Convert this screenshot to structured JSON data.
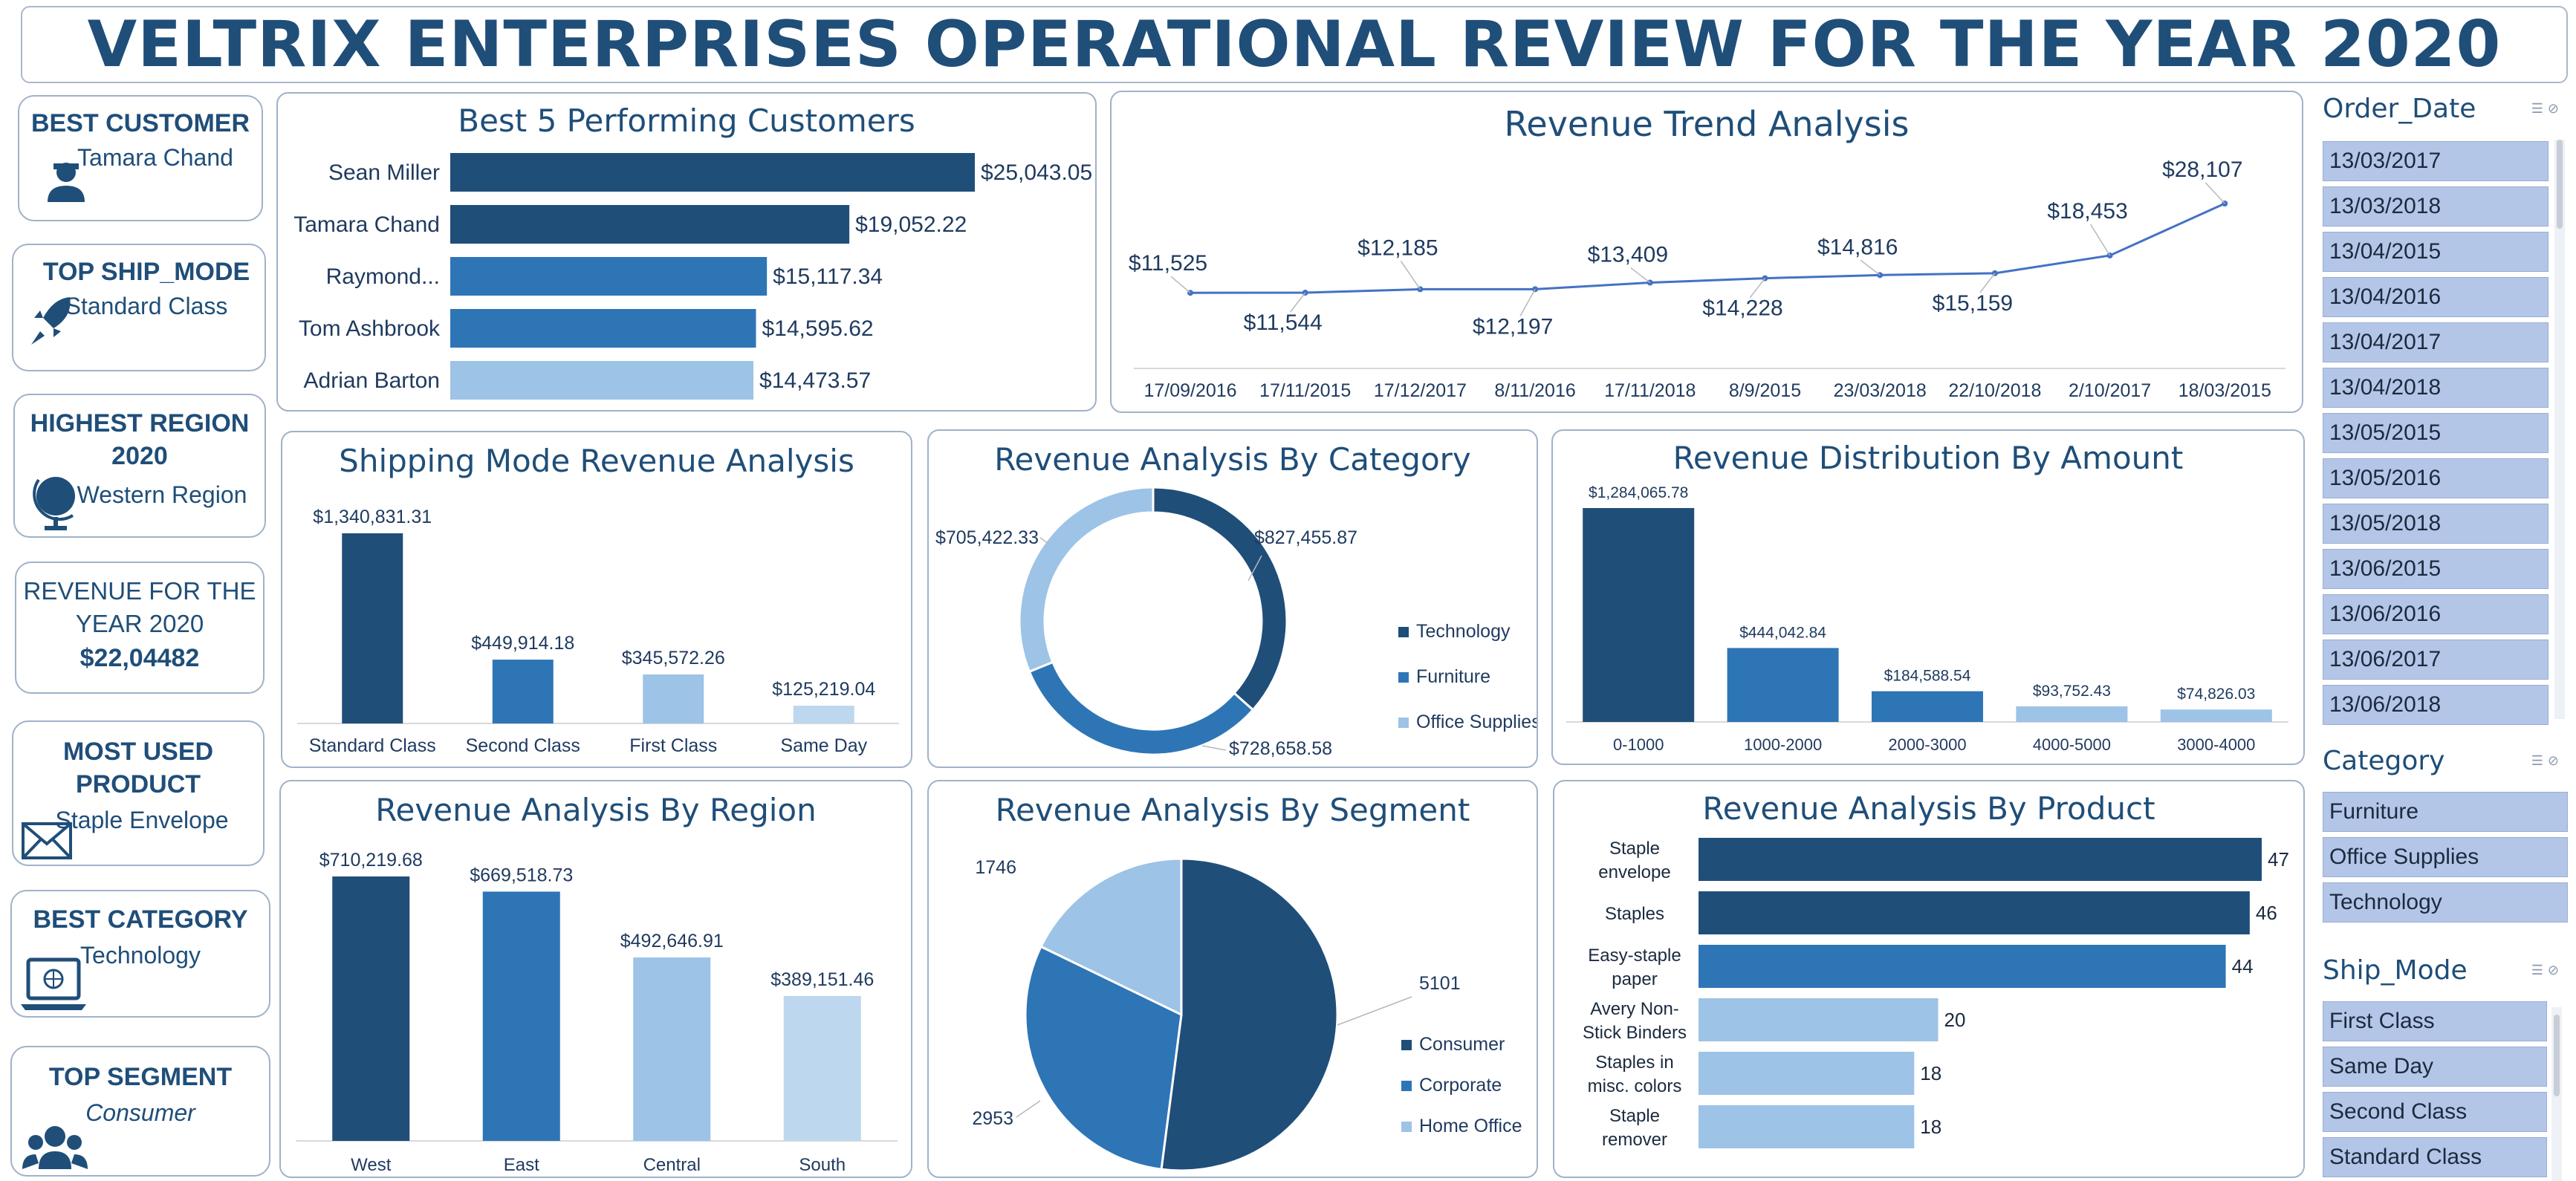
{
  "title": "VELTRIX ENTERPRISES OPERATIONAL REVIEW FOR THE YEAR 2020",
  "kpis": {
    "best_customer": {
      "label": "BEST CUSTOMER",
      "value": "Tamara Chand"
    },
    "top_ship_mode": {
      "label": "TOP SHIP_MODE",
      "value": "Standard Class"
    },
    "highest_region": {
      "label_1": "HIGHEST REGION",
      "label_2": "2020",
      "value": "Western Region"
    },
    "revenue": {
      "label_1": "REVENUE FOR THE",
      "label_2": "YEAR 2020",
      "value": "$22,04482"
    },
    "most_used_product": {
      "label_1": "MOST USED",
      "label_2": "PRODUCT",
      "value": "Staple Envelope"
    },
    "best_category": {
      "label": "BEST CATEGORY",
      "value": "Technology"
    },
    "top_segment": {
      "label": "TOP SEGMENT",
      "value": "Consumer"
    }
  },
  "colors": {
    "dark": "#1f4e79",
    "mid": "#2e75b6",
    "light": "#9dc3e6",
    "lighter": "#bdd7ee",
    "slicer": "#b4c6e7"
  },
  "slicers": {
    "order_date": {
      "title": "Order_Date",
      "items": [
        "13/03/2017",
        "13/03/2018",
        "13/04/2015",
        "13/04/2016",
        "13/04/2017",
        "13/04/2018",
        "13/05/2015",
        "13/05/2016",
        "13/05/2018",
        "13/06/2015",
        "13/06/2016",
        "13/06/2017",
        "13/06/2018"
      ]
    },
    "category": {
      "title": "Category",
      "items": [
        "Furniture",
        "Office Supplies",
        "Technology"
      ]
    },
    "ship_mode": {
      "title": "Ship_Mode",
      "items": [
        "First Class",
        "Same Day",
        "Second Class",
        "Standard Class"
      ]
    }
  },
  "chart_data": [
    {
      "id": "customers",
      "type": "bar",
      "orientation": "horizontal",
      "title": "Best 5 Performing Customers",
      "categories": [
        "Sean Miller",
        "Tamara Chand",
        "Raymond...",
        "Tom Ashbrook",
        "Adrian Barton"
      ],
      "values": [
        25043.05,
        19052.22,
        15117.34,
        14595.62,
        14473.57
      ],
      "labels": [
        "$25,043.05",
        "$19,052.22",
        "$15,117.34",
        "$14,595.62",
        "$14,473.57"
      ],
      "colors": [
        "#1f4e79",
        "#1f4e79",
        "#2e75b6",
        "#2e75b6",
        "#9dc3e6"
      ]
    },
    {
      "id": "trend",
      "type": "line",
      "title": "Revenue Trend Analysis",
      "categories": [
        "17/09/2016",
        "17/11/2015",
        "17/12/2017",
        "8/11/2016",
        "17/11/2018",
        "8/9/2015",
        "23/03/2018",
        "22/10/2018",
        "2/10/2017",
        "18/03/2015"
      ],
      "values": [
        11525,
        11544,
        12185,
        12197,
        13409,
        14228,
        14816,
        15159,
        18453,
        28107
      ],
      "labels": [
        "$11,525",
        "$11,544",
        "$12,185",
        "$12,197",
        "$13,409",
        "$14,228",
        "$14,816",
        "$15,159",
        "$18,453",
        "$28,107"
      ],
      "color": "#4472c4"
    },
    {
      "id": "shipping",
      "type": "bar",
      "title": "Shipping Mode Revenue Analysis",
      "categories": [
        "Standard Class",
        "Second Class",
        "First Class",
        "Same Day"
      ],
      "values": [
        1340831.31,
        449914.18,
        345572.26,
        125219.04
      ],
      "labels": [
        "$1,340,831.31",
        "$449,914.18",
        "$345,572.26",
        "$125,219.04"
      ],
      "colors": [
        "#1f4e79",
        "#2e75b6",
        "#9dc3e6",
        "#bdd7ee"
      ]
    },
    {
      "id": "category",
      "type": "pie",
      "donut": true,
      "title": "Revenue Analysis By Category",
      "categories": [
        "Technology",
        "Furniture",
        "Office Supplies"
      ],
      "values": [
        827455.87,
        728658.58,
        705422.33
      ],
      "labels": [
        "$827,455.87",
        "$728,658.58",
        "$705,422.33"
      ],
      "colors": [
        "#1f4e79",
        "#2e75b6",
        "#9dc3e6"
      ],
      "legend": "right"
    },
    {
      "id": "distribution",
      "type": "bar",
      "title": "Revenue Distribution By Amount",
      "categories": [
        "0-1000",
        "1000-2000",
        "2000-3000",
        "4000-5000",
        "3000-4000"
      ],
      "values": [
        1284065.78,
        444042.84,
        184588.54,
        93752.43,
        74826.03
      ],
      "labels": [
        "$1,284,065.78",
        "$444,042.84",
        "$184,588.54",
        "$93,752.43",
        "$74,826.03"
      ],
      "colors": [
        "#1f4e79",
        "#2e75b6",
        "#2e75b6",
        "#9dc3e6",
        "#9dc3e6"
      ]
    },
    {
      "id": "region",
      "type": "bar",
      "title": "Revenue Analysis By Region",
      "categories": [
        "West",
        "East",
        "Central",
        "South"
      ],
      "values": [
        710219.68,
        669518.73,
        492646.91,
        389151.46
      ],
      "labels": [
        "$710,219.68",
        "$669,518.73",
        "$492,646.91",
        "$389,151.46"
      ],
      "colors": [
        "#1f4e79",
        "#2e75b6",
        "#9dc3e6",
        "#bdd7ee"
      ]
    },
    {
      "id": "segment",
      "type": "pie",
      "title": "Revenue Analysis By Segment",
      "categories": [
        "Consumer",
        "Corporate",
        "Home Office"
      ],
      "values": [
        5101,
        2953,
        1746
      ],
      "labels": [
        "5101",
        "2953",
        "1746"
      ],
      "colors": [
        "#1f4e79",
        "#2e75b6",
        "#9dc3e6"
      ],
      "legend": "right"
    },
    {
      "id": "product",
      "type": "bar",
      "orientation": "horizontal",
      "title": "Revenue Analysis By Product",
      "categories": [
        [
          "Staple",
          "envelope"
        ],
        [
          "Staples"
        ],
        [
          "Easy-staple",
          "paper"
        ],
        [
          "Avery Non-",
          "Stick Binders"
        ],
        [
          "Staples in",
          "misc. colors"
        ],
        [
          "Staple",
          "remover"
        ]
      ],
      "values": [
        47,
        46,
        44,
        20,
        18,
        18
      ],
      "labels": [
        "47",
        "46",
        "44",
        "20",
        "18",
        "18"
      ],
      "colors": [
        "#1f4e79",
        "#1f4e79",
        "#2e75b6",
        "#9dc3e6",
        "#9dc3e6",
        "#9dc3e6"
      ]
    }
  ]
}
